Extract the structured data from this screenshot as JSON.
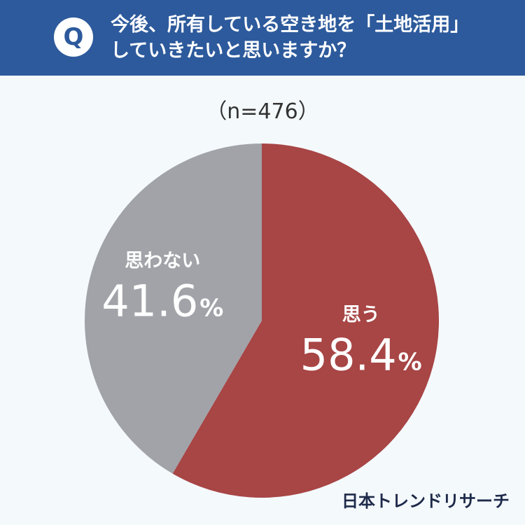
{
  "question": {
    "badge": "Q",
    "line1": "今後、所有している空き地を「土地活用」",
    "line2": "していきたいと思いますか？"
  },
  "sample_size": "（n=476）",
  "brand": "日本トレンドリサーチ",
  "colors": {
    "header_bg": "#2d5a9c",
    "slice_yes": "#a84545",
    "slice_no": "#a1a3a8"
  },
  "chart_data": {
    "type": "pie",
    "title": "",
    "slices": [
      {
        "label": "思う",
        "value": 58.4,
        "display": "58.4",
        "unit": "%"
      },
      {
        "label": "思わない",
        "value": 41.6,
        "display": "41.6",
        "unit": "%"
      }
    ],
    "start_angle": "12 o'clock",
    "direction": "clockwise"
  }
}
